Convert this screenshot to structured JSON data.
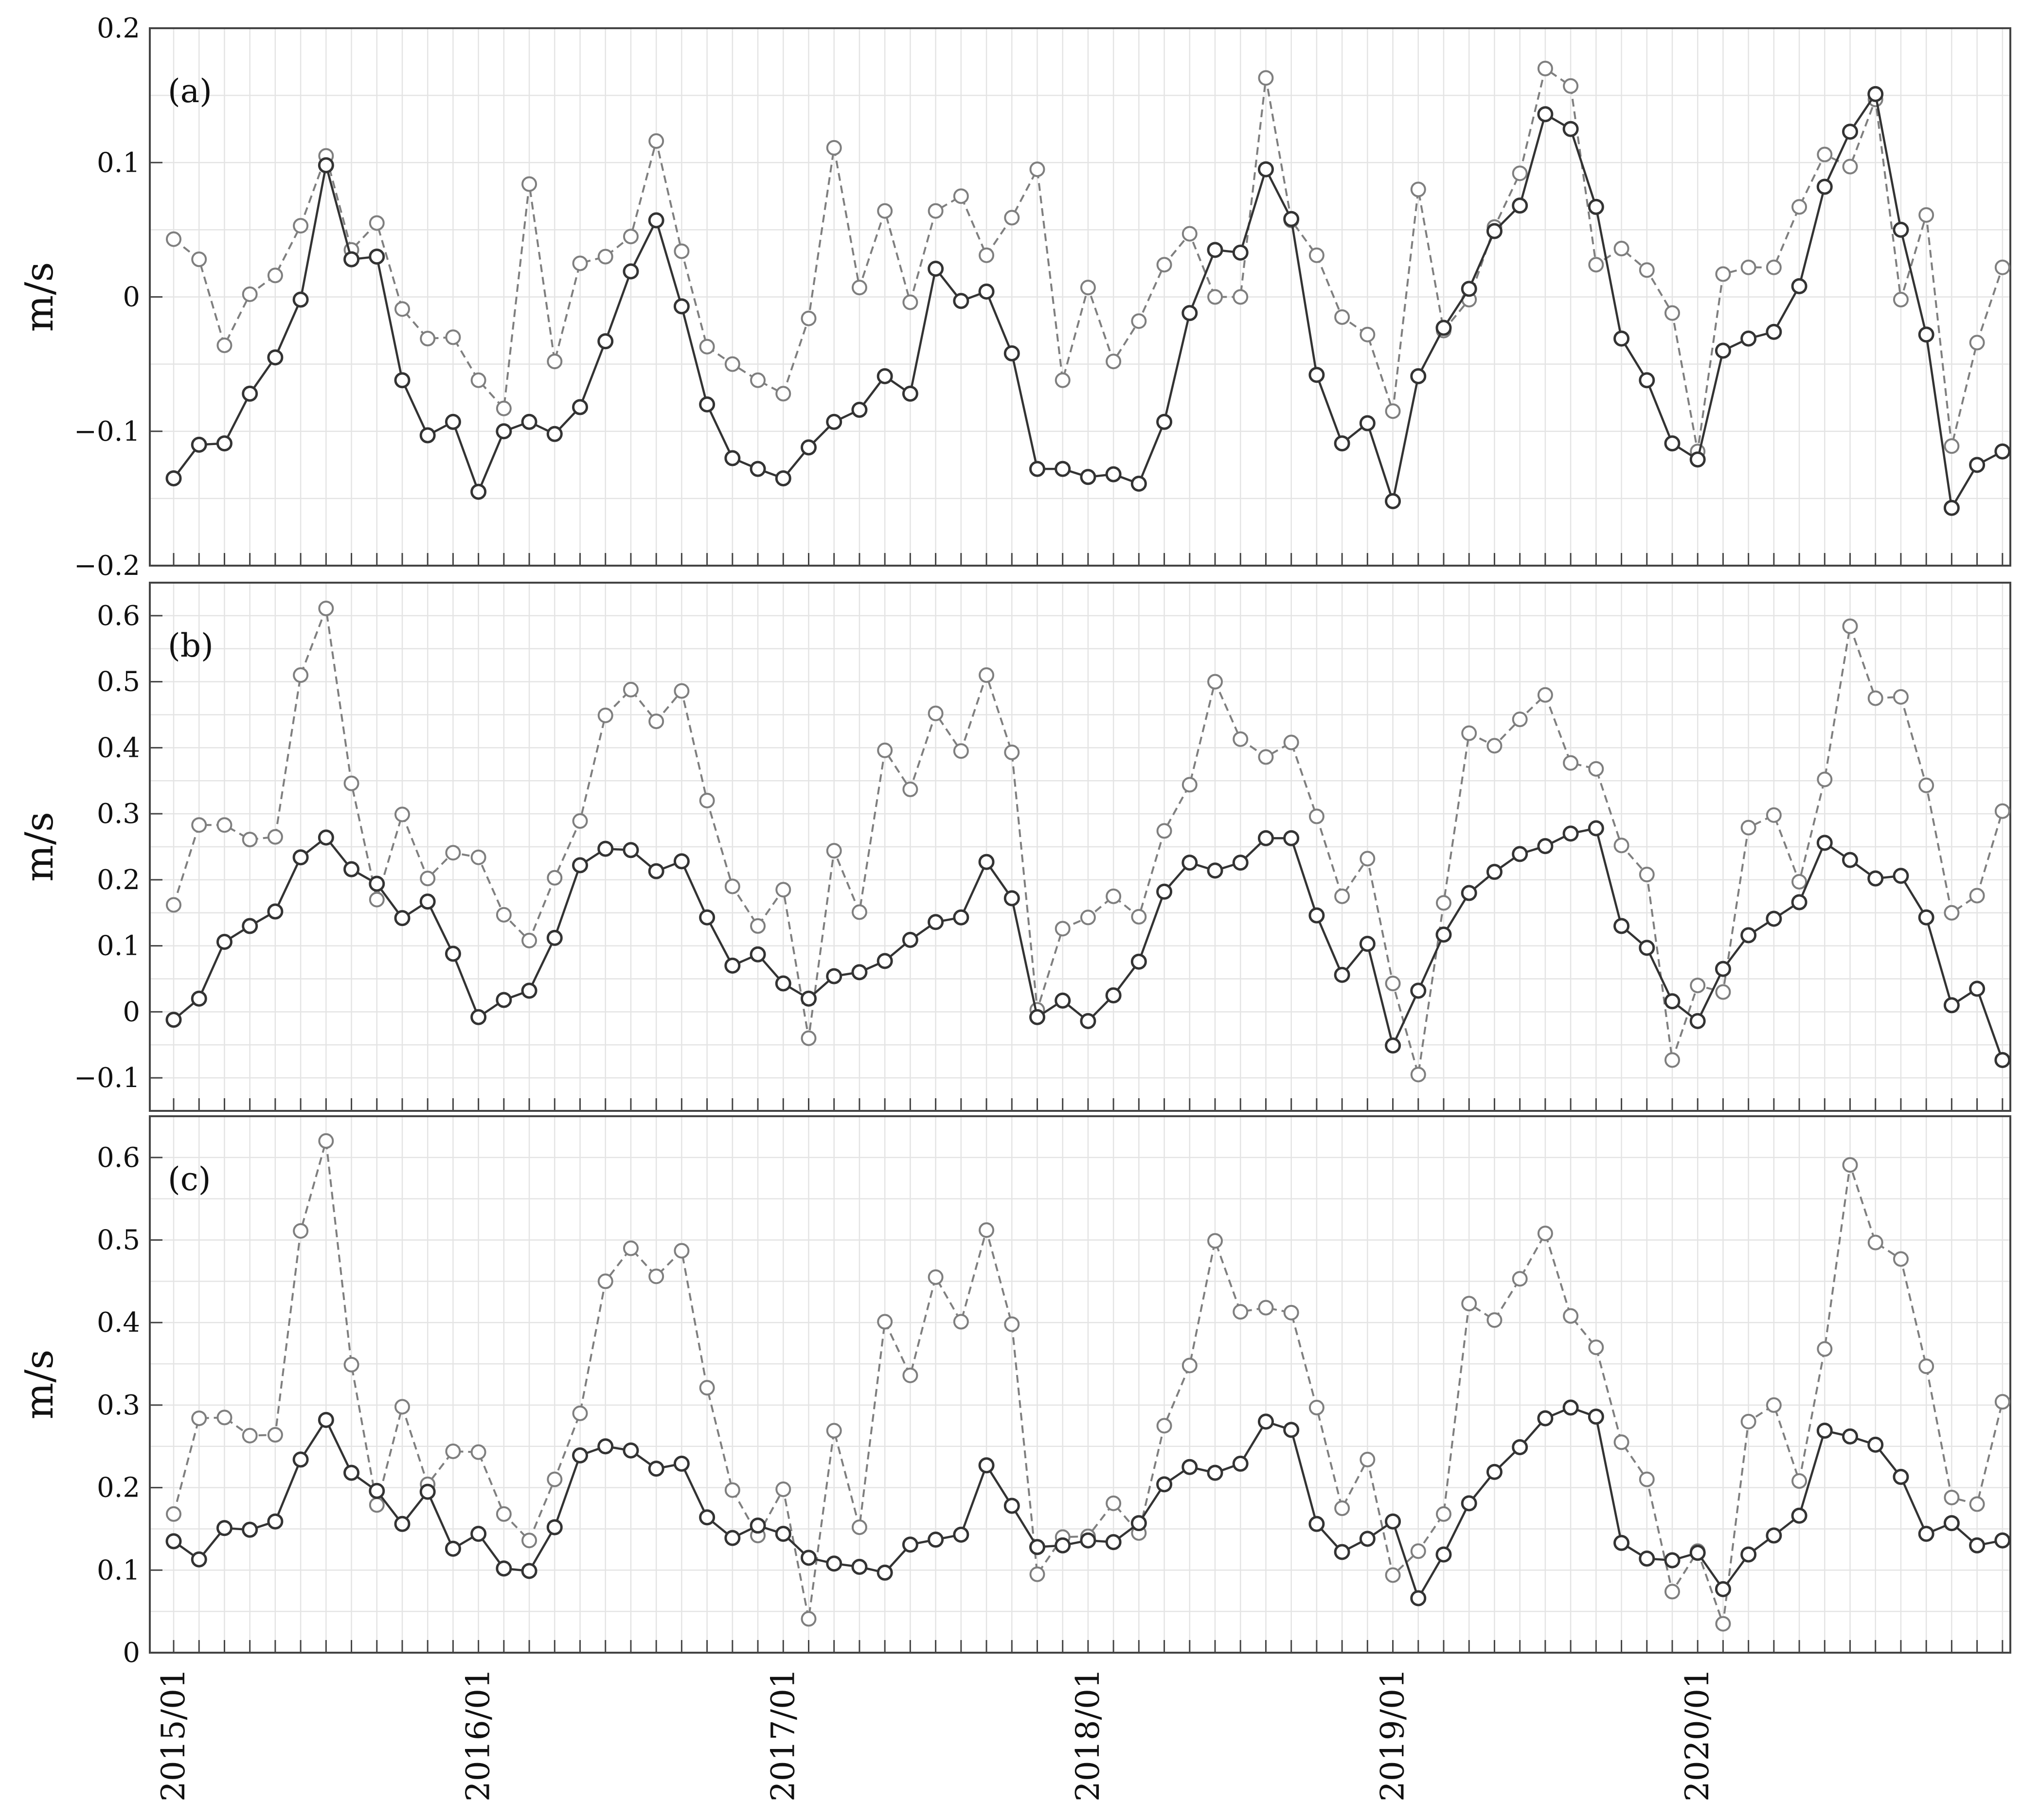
{
  "chart_data": [
    {
      "type": "line",
      "panel_label": "(a)",
      "ylabel": "m/s",
      "ylim": [
        -0.2,
        0.2
      ],
      "yticks": [
        -0.2,
        -0.1,
        0,
        0.1,
        0.2
      ],
      "ytick_labels": [
        "−0.2",
        "−0.1",
        "0",
        "0.1",
        "0.2"
      ],
      "grid": true,
      "series": [
        {
          "style": "solid",
          "color": "#333333",
          "values": [
            -0.135,
            -0.11,
            -0.109,
            -0.072,
            -0.045,
            -0.002,
            0.098,
            0.028,
            0.03,
            -0.062,
            -0.103,
            -0.093,
            -0.145,
            -0.1,
            -0.093,
            -0.102,
            -0.082,
            -0.033,
            0.019,
            0.057,
            -0.007,
            -0.08,
            -0.12,
            -0.128,
            -0.135,
            -0.112,
            -0.093,
            -0.084,
            -0.059,
            -0.072,
            0.021,
            -0.003,
            0.004,
            -0.042,
            -0.128,
            -0.128,
            -0.134,
            -0.132,
            -0.139,
            -0.093,
            -0.012,
            0.035,
            0.033,
            0.095,
            0.058,
            -0.058,
            -0.109,
            -0.094,
            -0.152,
            -0.059,
            -0.023,
            0.006,
            0.049,
            0.068,
            0.136,
            0.125,
            0.067,
            -0.031,
            -0.062,
            -0.109,
            -0.121,
            -0.04,
            -0.031,
            -0.026,
            0.008,
            0.082,
            0.123,
            0.151,
            0.05,
            -0.028,
            -0.157,
            -0.125,
            -0.115
          ]
        },
        {
          "style": "dashed",
          "color": "#7f7f7f",
          "values": [
            0.043,
            0.028,
            -0.036,
            0.002,
            0.016,
            0.053,
            0.105,
            0.035,
            0.055,
            -0.009,
            -0.031,
            -0.03,
            -0.062,
            -0.083,
            0.084,
            -0.048,
            0.025,
            0.03,
            0.045,
            0.116,
            0.034,
            -0.037,
            -0.05,
            -0.062,
            -0.072,
            -0.016,
            0.111,
            0.007,
            0.064,
            -0.004,
            0.064,
            0.075,
            0.031,
            0.059,
            0.095,
            -0.062,
            0.007,
            -0.048,
            -0.018,
            0.024,
            0.047,
            0.0,
            0.0,
            0.163,
            0.057,
            0.031,
            -0.015,
            -0.028,
            -0.085,
            0.08,
            -0.025,
            -0.002,
            0.052,
            0.092,
            0.17,
            0.157,
            0.024,
            0.036,
            0.02,
            -0.012,
            -0.115,
            0.017,
            0.022,
            0.022,
            0.067,
            0.106,
            0.097,
            0.147,
            -0.002,
            0.061,
            -0.111,
            -0.034,
            0.022
          ]
        }
      ]
    },
    {
      "type": "line",
      "panel_label": "(b)",
      "ylabel": "m/s",
      "ylim": [
        -0.15,
        0.65
      ],
      "yticks": [
        -0.1,
        0,
        0.1,
        0.2,
        0.3,
        0.4,
        0.5,
        0.6
      ],
      "ytick_labels": [
        "−0.1",
        "0",
        "0.1",
        "0.2",
        "0.3",
        "0.4",
        "0.5",
        "0.6"
      ],
      "grid": true,
      "series": [
        {
          "style": "solid",
          "color": "#333333",
          "values": [
            -0.012,
            0.02,
            0.106,
            0.13,
            0.152,
            0.234,
            0.264,
            0.216,
            0.194,
            0.142,
            0.167,
            0.088,
            -0.008,
            0.018,
            0.032,
            0.112,
            0.222,
            0.247,
            0.245,
            0.213,
            0.228,
            0.143,
            0.07,
            0.087,
            0.043,
            0.02,
            0.054,
            0.06,
            0.077,
            0.109,
            0.136,
            0.143,
            0.227,
            0.172,
            -0.008,
            0.017,
            -0.014,
            0.025,
            0.076,
            0.182,
            0.226,
            0.214,
            0.226,
            0.263,
            0.263,
            0.146,
            0.056,
            0.103,
            -0.051,
            0.032,
            0.117,
            0.18,
            0.212,
            0.239,
            0.251,
            0.27,
            0.278,
            0.13,
            0.097,
            0.016,
            -0.014,
            0.065,
            0.116,
            0.141,
            0.166,
            0.256,
            0.23,
            0.202,
            0.206,
            0.143,
            0.01,
            0.035,
            -0.073
          ]
        },
        {
          "style": "dashed",
          "color": "#7f7f7f",
          "values": [
            0.162,
            0.283,
            0.283,
            0.261,
            0.265,
            0.51,
            0.611,
            0.346,
            0.17,
            0.299,
            0.202,
            0.241,
            0.234,
            0.147,
            0.108,
            0.203,
            0.289,
            0.449,
            0.488,
            0.44,
            0.486,
            0.32,
            0.19,
            0.13,
            0.185,
            -0.04,
            0.244,
            0.151,
            0.396,
            0.337,
            0.452,
            0.395,
            0.51,
            0.393,
            0.003,
            0.126,
            0.143,
            0.175,
            0.144,
            0.274,
            0.344,
            0.5,
            0.413,
            0.386,
            0.408,
            0.296,
            0.175,
            0.232,
            0.043,
            -0.095,
            0.165,
            0.422,
            0.403,
            0.443,
            0.48,
            0.377,
            0.368,
            0.252,
            0.208,
            -0.073,
            0.04,
            0.03,
            0.279,
            0.298,
            0.197,
            0.352,
            0.584,
            0.475,
            0.477,
            0.343,
            0.15,
            0.176,
            0.304
          ]
        }
      ]
    },
    {
      "type": "line",
      "panel_label": "(c)",
      "ylabel": "m/s",
      "ylim": [
        0,
        0.65
      ],
      "yticks": [
        0,
        0.1,
        0.2,
        0.3,
        0.4,
        0.5,
        0.6
      ],
      "ytick_labels": [
        "0",
        "0.1",
        "0.2",
        "0.3",
        "0.4",
        "0.5",
        "0.6"
      ],
      "grid": true,
      "series": [
        {
          "style": "solid",
          "color": "#333333",
          "values": [
            0.135,
            0.113,
            0.151,
            0.149,
            0.159,
            0.234,
            0.282,
            0.218,
            0.196,
            0.156,
            0.195,
            0.126,
            0.144,
            0.102,
            0.099,
            0.152,
            0.239,
            0.25,
            0.245,
            0.223,
            0.229,
            0.164,
            0.139,
            0.154,
            0.144,
            0.115,
            0.108,
            0.104,
            0.097,
            0.131,
            0.137,
            0.143,
            0.227,
            0.178,
            0.128,
            0.13,
            0.136,
            0.134,
            0.157,
            0.204,
            0.225,
            0.218,
            0.229,
            0.28,
            0.27,
            0.156,
            0.122,
            0.138,
            0.159,
            0.066,
            0.119,
            0.181,
            0.219,
            0.249,
            0.284,
            0.297,
            0.286,
            0.133,
            0.114,
            0.112,
            0.121,
            0.077,
            0.119,
            0.142,
            0.166,
            0.269,
            0.262,
            0.252,
            0.213,
            0.144,
            0.157,
            0.13,
            0.136
          ]
        },
        {
          "style": "dashed",
          "color": "#7f7f7f",
          "values": [
            0.168,
            0.284,
            0.285,
            0.263,
            0.264,
            0.511,
            0.62,
            0.349,
            0.179,
            0.298,
            0.204,
            0.244,
            0.243,
            0.168,
            0.136,
            0.21,
            0.29,
            0.45,
            0.49,
            0.456,
            0.487,
            0.321,
            0.197,
            0.142,
            0.198,
            0.041,
            0.269,
            0.152,
            0.401,
            0.336,
            0.455,
            0.401,
            0.512,
            0.398,
            0.095,
            0.14,
            0.141,
            0.181,
            0.145,
            0.275,
            0.348,
            0.499,
            0.413,
            0.418,
            0.412,
            0.297,
            0.175,
            0.234,
            0.094,
            0.123,
            0.168,
            0.423,
            0.403,
            0.453,
            0.508,
            0.408,
            0.37,
            0.255,
            0.21,
            0.074,
            0.123,
            0.035,
            0.28,
            0.3,
            0.208,
            0.368,
            0.591,
            0.497,
            0.477,
            0.347,
            0.188,
            0.18,
            0.304
          ]
        }
      ]
    }
  ],
  "x_axis": {
    "start": "2015/01",
    "period": "monthly",
    "num_points": 73,
    "tick_labels": [
      "2015/01",
      "2016/01",
      "2017/01",
      "2018/01",
      "2019/01",
      "2020/01"
    ]
  }
}
